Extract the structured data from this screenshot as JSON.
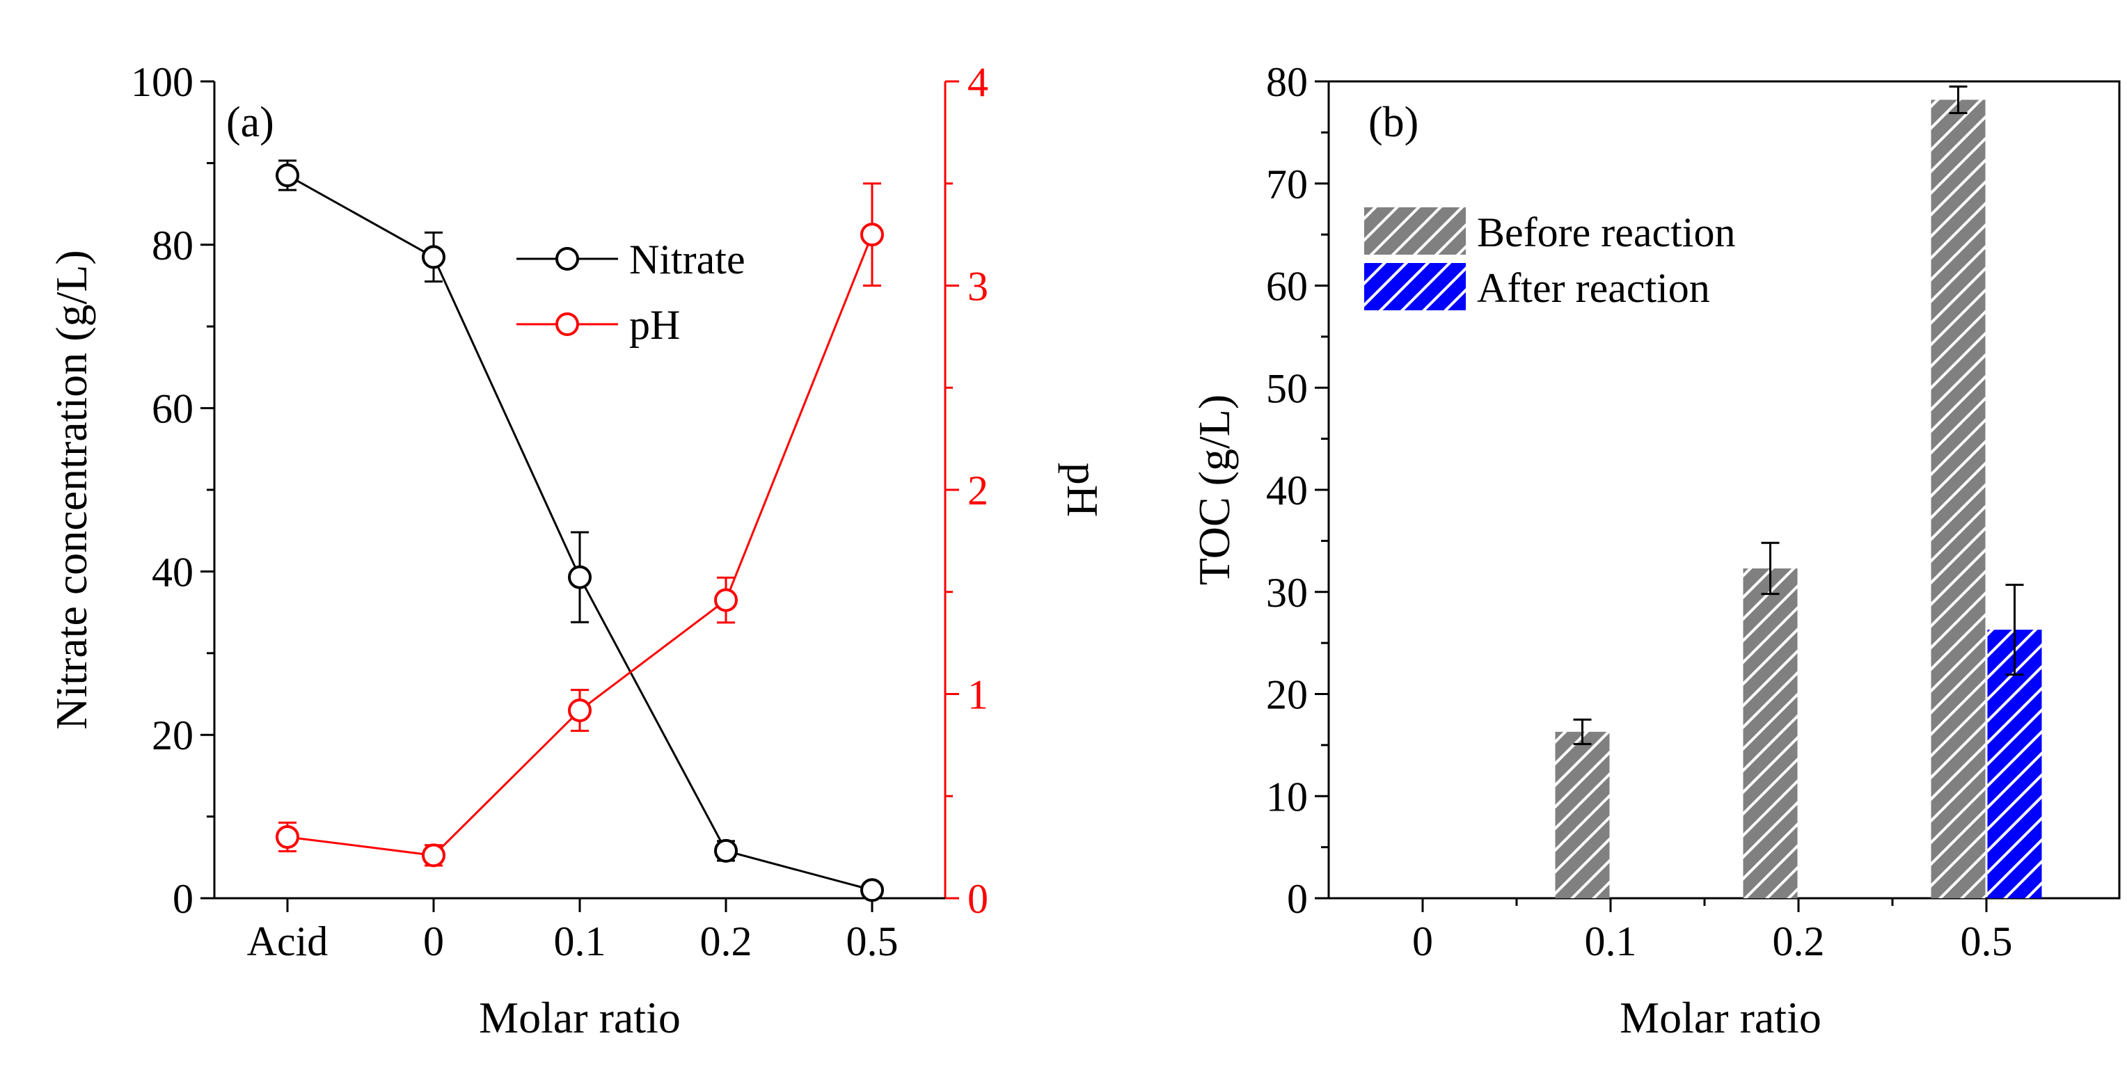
{
  "chart_data": [
    {
      "panel": "(a)",
      "type": "line",
      "categories": [
        "Acid",
        "0",
        "0.1",
        "0.2",
        "0.5"
      ],
      "xlabel": "Molar ratio",
      "ylabel_left": "Nitrate concentration (g/L)",
      "ylabel_right": "pH",
      "ylim_left": [
        0,
        100
      ],
      "ylim_right": [
        0,
        4
      ],
      "yticks_left": [
        "0",
        "20",
        "40",
        "60",
        "80",
        "100"
      ],
      "yticks_right": [
        "0",
        "1",
        "2",
        "3",
        "4"
      ],
      "legend_position": "top-center",
      "series": [
        {
          "name": "Nitrate",
          "axis": "left",
          "color": "#000000",
          "values": [
            88.5,
            78.5,
            39.3,
            5.8,
            1.0
          ],
          "errors": [
            1.8,
            3.0,
            5.5,
            1.2,
            0.7
          ]
        },
        {
          "name": "pH",
          "axis": "right",
          "color": "#ff0000",
          "values": [
            0.3,
            0.21,
            0.92,
            1.46,
            3.25
          ],
          "errors": [
            0.07,
            0.05,
            0.1,
            0.11,
            0.25
          ]
        }
      ]
    },
    {
      "panel": "(b)",
      "type": "bar",
      "categories": [
        "0",
        "0.1",
        "0.2",
        "0.5"
      ],
      "xlabel": "Molar ratio",
      "ylabel": "TOC (g/L)",
      "ylim": [
        0,
        80
      ],
      "yticks": [
        "0",
        "10",
        "20",
        "30",
        "40",
        "50",
        "60",
        "70",
        "80"
      ],
      "legend_position": "top-left",
      "series": [
        {
          "name": "Before reaction",
          "color": "#808080",
          "values": [
            null,
            16.3,
            32.3,
            78.2
          ],
          "errors": [
            null,
            1.2,
            2.5,
            1.3
          ]
        },
        {
          "name": "After reaction",
          "color": "#0000ff",
          "values": [
            null,
            null,
            null,
            26.3
          ],
          "errors": [
            null,
            null,
            null,
            4.4
          ]
        }
      ]
    }
  ]
}
